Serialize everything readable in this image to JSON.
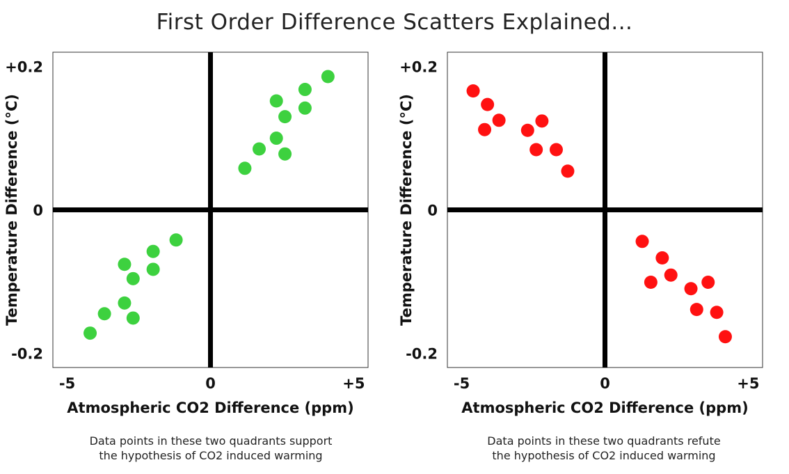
{
  "title": "First Order Difference Scatters Explained...",
  "chart_data": [
    {
      "type": "scatter",
      "xlabel": "Atmospheric CO2 Difference  (ppm)",
      "ylabel": "Temperature Difference  (°C)",
      "xlim": [
        -5.5,
        5.5
      ],
      "ylim": [
        -0.22,
        0.22
      ],
      "xticks": [
        {
          "value": -5,
          "label": "-5"
        },
        {
          "value": 0,
          "label": "0"
        },
        {
          "value": 5,
          "label": "+5"
        }
      ],
      "yticks": [
        {
          "value": 0.2,
          "label": "+0.2"
        },
        {
          "value": 0,
          "label": "0"
        },
        {
          "value": -0.2,
          "label": "-0.2"
        }
      ],
      "color": "#3dd13f",
      "caption": [
        "Data points in these two quadrants support",
        "the hypothesis of CO2 induced warming"
      ],
      "points": [
        {
          "x": 1.2,
          "y": 0.058
        },
        {
          "x": 1.7,
          "y": 0.085
        },
        {
          "x": 2.3,
          "y": 0.1
        },
        {
          "x": 2.6,
          "y": 0.078
        },
        {
          "x": 2.3,
          "y": 0.152
        },
        {
          "x": 2.6,
          "y": 0.13
        },
        {
          "x": 3.3,
          "y": 0.142
        },
        {
          "x": 3.3,
          "y": 0.168
        },
        {
          "x": 4.1,
          "y": 0.186
        },
        {
          "x": -1.2,
          "y": -0.042
        },
        {
          "x": -2.0,
          "y": -0.058
        },
        {
          "x": -2.0,
          "y": -0.083
        },
        {
          "x": -3.0,
          "y": -0.076
        },
        {
          "x": -2.7,
          "y": -0.096
        },
        {
          "x": -3.0,
          "y": -0.13
        },
        {
          "x": -3.7,
          "y": -0.145
        },
        {
          "x": -2.7,
          "y": -0.151
        },
        {
          "x": -4.2,
          "y": -0.172
        }
      ]
    },
    {
      "type": "scatter",
      "xlabel": "Atmospheric CO2 Difference  (ppm)",
      "ylabel": "Temperature Difference  (°C)",
      "xlim": [
        -5.5,
        5.5
      ],
      "ylim": [
        -0.22,
        0.22
      ],
      "xticks": [
        {
          "value": -5,
          "label": "-5"
        },
        {
          "value": 0,
          "label": "0"
        },
        {
          "value": 5,
          "label": "+5"
        }
      ],
      "yticks": [
        {
          "value": 0.2,
          "label": "+0.2"
        },
        {
          "value": 0,
          "label": "0"
        },
        {
          "value": -0.2,
          "label": "-0.2"
        }
      ],
      "color": "#ff1111",
      "caption": [
        "Data points in these two quadrants refute",
        "the hypothesis of CO2 induced warming"
      ],
      "points": [
        {
          "x": -4.6,
          "y": 0.166
        },
        {
          "x": -4.1,
          "y": 0.147
        },
        {
          "x": -3.7,
          "y": 0.125
        },
        {
          "x": -4.2,
          "y": 0.112
        },
        {
          "x": -2.7,
          "y": 0.111
        },
        {
          "x": -2.2,
          "y": 0.124
        },
        {
          "x": -2.4,
          "y": 0.084
        },
        {
          "x": -1.7,
          "y": 0.084
        },
        {
          "x": -1.3,
          "y": 0.054
        },
        {
          "x": 1.3,
          "y": -0.044
        },
        {
          "x": 2.0,
          "y": -0.067
        },
        {
          "x": 1.6,
          "y": -0.101
        },
        {
          "x": 2.3,
          "y": -0.091
        },
        {
          "x": 3.0,
          "y": -0.11
        },
        {
          "x": 3.6,
          "y": -0.101
        },
        {
          "x": 3.2,
          "y": -0.139
        },
        {
          "x": 3.9,
          "y": -0.143
        },
        {
          "x": 4.2,
          "y": -0.177
        }
      ]
    }
  ]
}
